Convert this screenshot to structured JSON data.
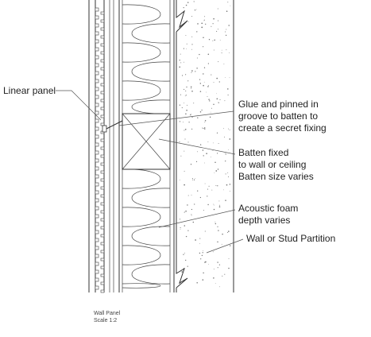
{
  "drawing": {
    "callouts": {
      "linear_panel": "Linear panel",
      "glue_line_1": "Glue and pinned in",
      "glue_line_2": "groove to batten to",
      "glue_line_3": "create a secret fixing",
      "batten_line_1": "Batten fixed",
      "batten_line_2": "to wall or ceiling",
      "batten_line_3": "Batten size varies",
      "foam_line_1": "Acoustic foam",
      "foam_line_2": "depth varies",
      "wall": "Wall or Stud Partition"
    },
    "caption": {
      "title": "Wall Panel",
      "scale": "Scale 1:2"
    }
  }
}
